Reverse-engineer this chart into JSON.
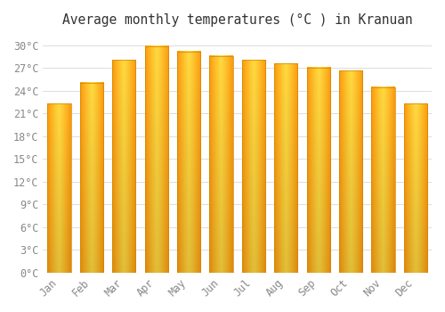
{
  "months": [
    "Jan",
    "Feb",
    "Mar",
    "Apr",
    "May",
    "Jun",
    "Jul",
    "Aug",
    "Sep",
    "Oct",
    "Nov",
    "Dec"
  ],
  "values": [
    22.3,
    25.1,
    28.1,
    29.9,
    29.2,
    28.6,
    28.1,
    27.6,
    27.1,
    26.7,
    24.5,
    22.3
  ],
  "title": "Average monthly temperatures (°C ) in Kranuan",
  "ylim": [
    0,
    31.5
  ],
  "ytick_interval": 3,
  "background_color": "#FFFFFF",
  "grid_color": "#DDDDDD",
  "title_fontsize": 10.5,
  "tick_fontsize": 8.5,
  "figsize": [
    5.0,
    3.5
  ],
  "dpi": 100,
  "bar_width": 0.72,
  "bar_color_center": "#FFD050",
  "bar_color_edge": "#FFA020",
  "bar_border_color": "#CC8800"
}
